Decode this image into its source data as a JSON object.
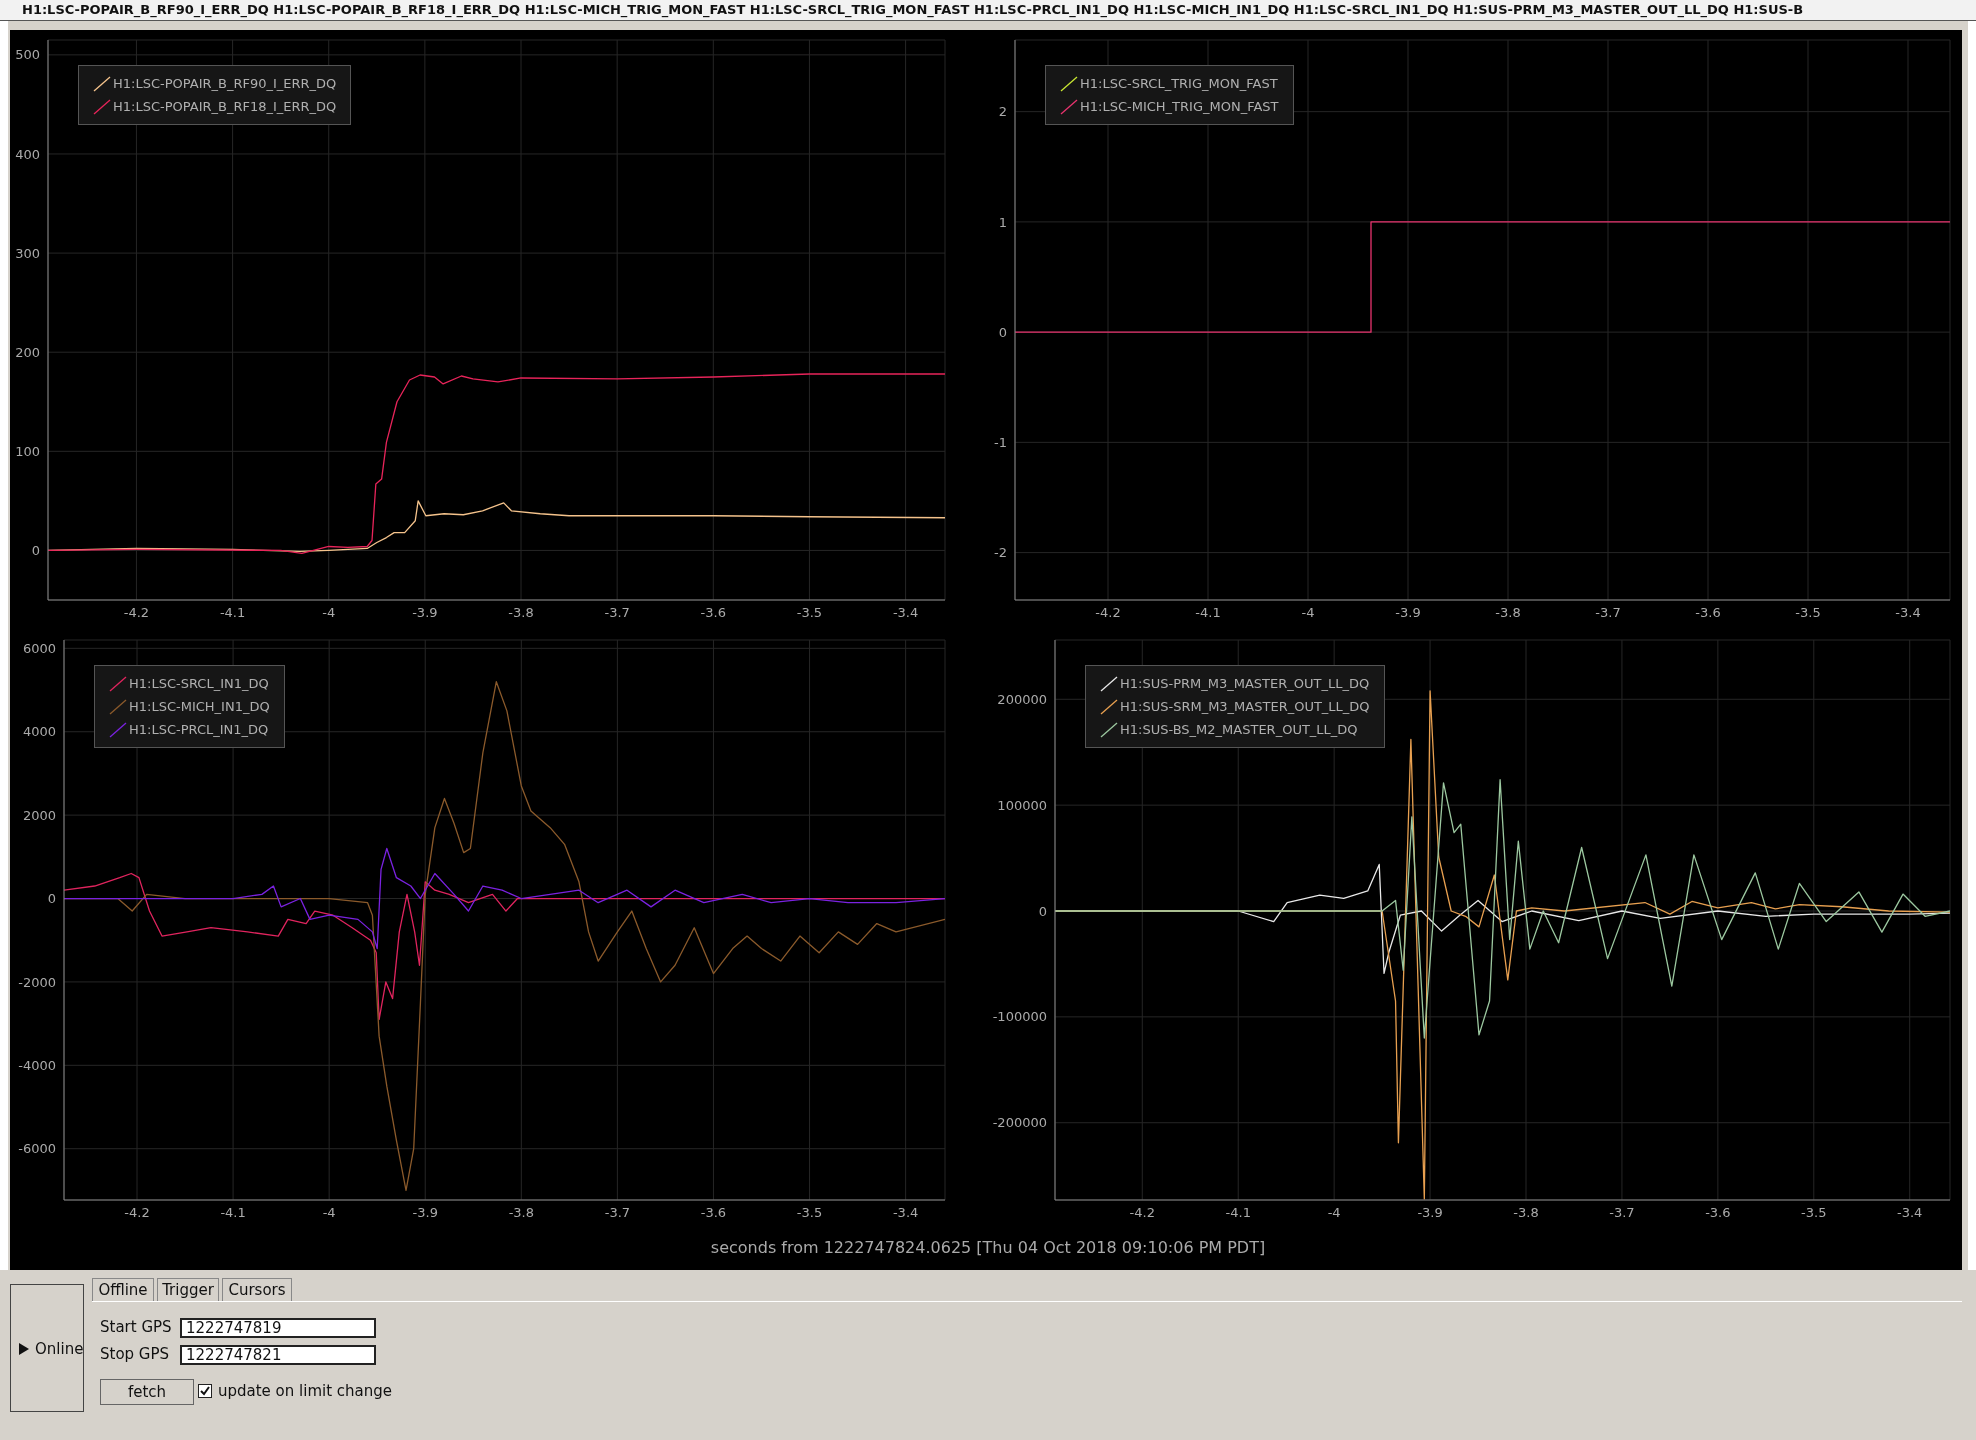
{
  "chart_data": [
    {
      "type": "line",
      "xlim": [
        -4.292,
        -3.359
      ],
      "xticks": [
        -4.2,
        -4.1,
        -4,
        -3.9,
        -3.8,
        -3.7,
        -3.6,
        -3.5,
        -3.4
      ],
      "ylim": [
        -50,
        515
      ],
      "yticks": [
        0,
        100,
        200,
        300,
        400,
        500
      ],
      "grid": true,
      "legend": "top left",
      "series": [
        {
          "name": "H1:LSC-POPAIR_B_RF90_I_ERR_DQ",
          "color": "#f5c38c",
          "x": [
            -4.292,
            -4.2,
            -4.1,
            -4.03,
            -4,
            -3.96,
            -3.95,
            -3.94,
            -3.932,
            -3.921,
            -3.91,
            -3.907,
            -3.899,
            -3.88,
            -3.86,
            -3.84,
            -3.818,
            -3.81,
            -3.78,
            -3.75,
            -3.6,
            -3.5,
            -3.359
          ],
          "values": [
            0,
            2,
            1,
            -1,
            0,
            2,
            8,
            13,
            18,
            18,
            30,
            50,
            35,
            37,
            36,
            40,
            48,
            40,
            37,
            35,
            35,
            34,
            33
          ]
        },
        {
          "name": "H1:LSC-POPAIR_B_RF18_I_ERR_DQ",
          "color": "#e8245a",
          "x": [
            -4.292,
            -4.2,
            -4.05,
            -4.028,
            -4,
            -3.98,
            -3.96,
            -3.955,
            -3.951,
            -3.945,
            -3.94,
            -3.929,
            -3.916,
            -3.905,
            -3.89,
            -3.881,
            -3.862,
            -3.85,
            -3.824,
            -3.8,
            -3.7,
            -3.6,
            -3.5,
            -3.359
          ],
          "values": [
            0,
            1,
            0,
            -3,
            4,
            3,
            4,
            10,
            67,
            72,
            109,
            150,
            172,
            177,
            175,
            168,
            176,
            173,
            170,
            174,
            173,
            175,
            178,
            178
          ]
        }
      ]
    },
    {
      "type": "step",
      "xlim": [
        -4.293,
        -3.358
      ],
      "xticks": [
        -4.2,
        -4.1,
        -4,
        -3.9,
        -3.8,
        -3.7,
        -3.6,
        -3.5,
        -3.4
      ],
      "ylim": [
        -2.43,
        2.65
      ],
      "yticks": [
        -2,
        -1,
        0,
        1,
        2
      ],
      "grid": true,
      "legend": "top left",
      "series": [
        {
          "name": "H1:LSC-SRCL_TRIG_MON_FAST",
          "color": "#c8e632",
          "values": [
            null,
            null,
            null
          ]
        },
        {
          "name": "H1:LSC-MICH_TRIG_MON_FAST",
          "color": "#e8336e",
          "x": [
            -4.293,
            -3.937,
            -3.358
          ],
          "values": [
            0,
            1,
            1
          ]
        }
      ]
    },
    {
      "type": "line",
      "xlabel": "seconds from 1222747824.0625 [Thu 04 Oct 2018 09:10:06 PM PDT]",
      "xlim": [
        -4.276,
        -3.359
      ],
      "xticks": [
        -4.2,
        -4.1,
        -4,
        -3.9,
        -3.8,
        -3.7,
        -3.6,
        -3.5,
        -3.4
      ],
      "ylim": [
        -7230,
        6200
      ],
      "yticks": [
        -6000,
        -4000,
        -2000,
        0,
        2000,
        4000,
        6000
      ],
      "grid": true,
      "legend": "top left",
      "series": [
        {
          "name": "H1:LSC-SRCL_IN1_DQ",
          "color": "#e0245e",
          "x": [
            -4.276,
            -4.244,
            -4.218,
            -4.206,
            -4.198,
            -4.187,
            -4.174,
            -4.148,
            -4.123,
            -4.085,
            -4.053,
            -4.043,
            -4.024,
            -4.015,
            -3.996,
            -3.976,
            -3.957,
            -3.951,
            -3.948,
            -3.941,
            -3.934,
            -3.927,
            -3.919,
            -3.911,
            -3.906,
            -3.9,
            -3.89,
            -3.875,
            -3.855,
            -3.83,
            -3.816,
            -3.804,
            -3.766,
            -3.6,
            -3.5,
            -3.359
          ],
          "values": [
            200,
            300,
            500,
            600,
            500,
            -300,
            -900,
            -800,
            -700,
            -800,
            -900,
            -500,
            -600,
            -300,
            -400,
            -700,
            -1000,
            -1300,
            -2900,
            -2000,
            -2400,
            -800,
            100,
            -800,
            -1600,
            400,
            200,
            100,
            -100,
            100,
            -300,
            0,
            0,
            0,
            0,
            0
          ]
        },
        {
          "name": "H1:LSC-MICH_IN1_DQ",
          "color": "#8b5a2b",
          "x": [
            -4.276,
            -4.22,
            -4.205,
            -4.19,
            -4.15,
            -4,
            -3.96,
            -3.955,
            -3.948,
            -3.94,
            -3.93,
            -3.92,
            -3.912,
            -3.905,
            -3.9,
            -3.89,
            -3.88,
            -3.87,
            -3.86,
            -3.853,
            -3.84,
            -3.826,
            -3.815,
            -3.8,
            -3.79,
            -3.77,
            -3.755,
            -3.74,
            -3.73,
            -3.72,
            -3.7,
            -3.685,
            -3.67,
            -3.655,
            -3.64,
            -3.62,
            -3.6,
            -3.58,
            -3.565,
            -3.55,
            -3.53,
            -3.51,
            -3.49,
            -3.47,
            -3.45,
            -3.43,
            -3.41,
            -3.359
          ],
          "values": [
            0,
            0,
            -300,
            100,
            0,
            0,
            -100,
            -400,
            -3300,
            -4500,
            -5800,
            -7000,
            -6000,
            -2500,
            100,
            1700,
            2400,
            1800,
            1100,
            1200,
            3500,
            5200,
            4500,
            2700,
            2100,
            1700,
            1300,
            400,
            -800,
            -1500,
            -800,
            -300,
            -1200,
            -2000,
            -1600,
            -700,
            -1800,
            -1200,
            -900,
            -1200,
            -1500,
            -900,
            -1300,
            -800,
            -1100,
            -600,
            -800,
            -500
          ]
        },
        {
          "name": "H1:LSC-PRCL_IN1_DQ",
          "color": "#7a22e0",
          "x": [
            -4.276,
            -4.1,
            -4.07,
            -4.058,
            -4.05,
            -4.03,
            -4.02,
            -4,
            -3.97,
            -3.955,
            -3.95,
            -3.946,
            -3.94,
            -3.93,
            -3.915,
            -3.905,
            -3.89,
            -3.87,
            -3.855,
            -3.84,
            -3.82,
            -3.8,
            -3.74,
            -3.72,
            -3.69,
            -3.665,
            -3.64,
            -3.61,
            -3.57,
            -3.54,
            -3.5,
            -3.46,
            -3.41,
            -3.359
          ],
          "values": [
            0,
            0,
            100,
            300,
            -200,
            0,
            -500,
            -400,
            -500,
            -800,
            -1200,
            700,
            1200,
            500,
            300,
            0,
            600,
            100,
            -300,
            300,
            200,
            0,
            200,
            -100,
            200,
            -200,
            200,
            -100,
            100,
            -100,
            0,
            -100,
            -100,
            0
          ]
        }
      ]
    },
    {
      "type": "line",
      "xlim": [
        -4.291,
        -3.358
      ],
      "xticks": [
        -4.2,
        -4.1,
        -4,
        -3.9,
        -3.8,
        -3.7,
        -3.6,
        -3.5,
        -3.4
      ],
      "ylim": [
        -273000,
        256000
      ],
      "yticks": [
        -200000,
        -100000,
        0,
        100000,
        200000
      ],
      "grid": true,
      "legend": "top left",
      "series": [
        {
          "name": "H1:SUS-PRM_M3_MASTER_OUT_LL_DQ",
          "color": "#e8e8e8",
          "x": [
            -4.291,
            -4.1,
            -4.063,
            -4.049,
            -4.015,
            -3.99,
            -3.965,
            -3.953,
            -3.948,
            -3.943,
            -3.931,
            -3.909,
            -3.888,
            -3.869,
            -3.85,
            -3.825,
            -3.794,
            -3.745,
            -3.7,
            -3.66,
            -3.6,
            -3.55,
            -3.5,
            -3.4,
            -3.358
          ],
          "values": [
            0,
            0,
            -10000,
            8000,
            15000,
            12000,
            19000,
            44000,
            -59000,
            -39000,
            -4000,
            0,
            -19000,
            -4000,
            10000,
            -10000,
            0,
            -9000,
            0,
            -7000,
            0,
            -5000,
            -3000,
            -3000,
            -2000
          ]
        },
        {
          "name": "H1:SUS-SRM_M3_MASTER_OUT_LL_DQ",
          "color": "#e8a050",
          "x": [
            -4.291,
            -3.95,
            -3.936,
            -3.933,
            -3.92,
            -3.906,
            -3.9,
            -3.891,
            -3.878,
            -3.863,
            -3.849,
            -3.833,
            -3.819,
            -3.81,
            -3.794,
            -3.76,
            -3.676,
            -3.65,
            -3.627,
            -3.6,
            -3.565,
            -3.54,
            -3.515,
            -3.471,
            -3.422,
            -3.358
          ],
          "values": [
            0,
            0,
            -85000,
            -219000,
            162000,
            -272000,
            208000,
            51000,
            0,
            -5000,
            -15000,
            34000,
            -65000,
            0,
            3000,
            0,
            8000,
            -3000,
            9000,
            3000,
            8000,
            2000,
            6000,
            4000,
            0,
            -1000
          ]
        },
        {
          "name": "H1:SUS-BS_M2_MASTER_OUT_LL_DQ",
          "color": "#9cc8a0",
          "x": [
            -4.291,
            -3.95,
            -3.936,
            -3.928,
            -3.919,
            -3.906,
            -3.886,
            -3.875,
            -3.868,
            -3.849,
            -3.838,
            -3.827,
            -3.817,
            -3.808,
            -3.796,
            -3.782,
            -3.766,
            -3.742,
            -3.715,
            -3.675,
            -3.648,
            -3.625,
            -3.596,
            -3.561,
            -3.537,
            -3.515,
            -3.487,
            -3.453,
            -3.429,
            -3.407,
            -3.384,
            -3.358
          ],
          "values": [
            0,
            0,
            10000,
            -56000,
            89000,
            -120000,
            121000,
            74000,
            82000,
            -117000,
            -85000,
            124000,
            -27000,
            66000,
            -36000,
            0,
            -30000,
            60000,
            -45000,
            53000,
            -71000,
            53000,
            -27000,
            36000,
            -36000,
            26000,
            -10000,
            18000,
            -20000,
            16000,
            -5000,
            0
          ]
        }
      ]
    },
    {
      "type": "other",
      "title": "H1:LSC-POPAIR_B_RF90_I_ERR_DQ H1:LSC-POPAIR_B_RF18_I_ERR_DQ H1:LSC-MICH_TRIG_MON_FAST H1:LSC-SRCL_TRIG_MON_FAST H1:LSC-PRCL_IN1_DQ H1:LSC-MICH_IN1_DQ H1:LSC-SRCL_IN1_DQ H1:SUS-PRM_M3_MASTER_OUT_LL_DQ H1:SUS-B",
      "annotations": [
        "Online",
        "Offline",
        "Trigger",
        "Cursors",
        "Start GPS",
        "1222747819",
        "Stop GPS",
        "1222747821",
        "fetch",
        "update on limit change"
      ]
    }
  ]
}
